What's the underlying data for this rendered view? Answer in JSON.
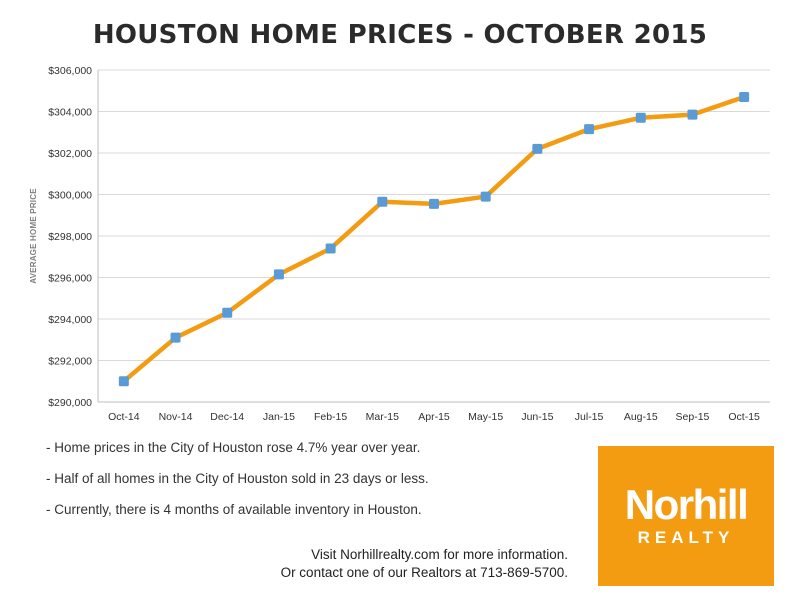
{
  "title": "HOUSTON HOME PRICES - OCTOBER 2015",
  "chart_data": {
    "type": "line",
    "ylabel": "AVERAGE HOME PRICE",
    "xlabel": "",
    "categories": [
      "Oct-14",
      "Nov-14",
      "Dec-14",
      "Jan-15",
      "Feb-15",
      "Mar-15",
      "Apr-15",
      "May-15",
      "Jun-15",
      "Jul-15",
      "Aug-15",
      "Sep-15",
      "Oct-15"
    ],
    "series": [
      {
        "values": [
          291000,
          293100,
          294300,
          296150,
          297400,
          299650,
          299550,
          299900,
          302200,
          303150,
          303700,
          303850,
          304700
        ]
      }
    ],
    "ylim": [
      290000,
      306000
    ],
    "yticks": [
      "$290,000",
      "$292,000",
      "$294,000",
      "$296,000",
      "$298,000",
      "$300,000",
      "$302,000",
      "$304,000",
      "$306,000"
    ],
    "grid": true,
    "line_color": "#f39c12",
    "marker_color": "#5b9bd5"
  },
  "notes": [
    "- Home prices in the City of Houston rose 4.7% year over year.",
    "- Half of all homes in the City of Houston sold in 23 days or less.",
    "- Currently, there is 4 months of available inventory in Houston."
  ],
  "footer": {
    "line1": "Visit Norhillrealty.com for more information.",
    "line2": "Or contact one of our Realtors at 713-869-5700."
  },
  "logo": {
    "main": "Norhill",
    "sub": "REALTY",
    "color": "#f39c12"
  }
}
